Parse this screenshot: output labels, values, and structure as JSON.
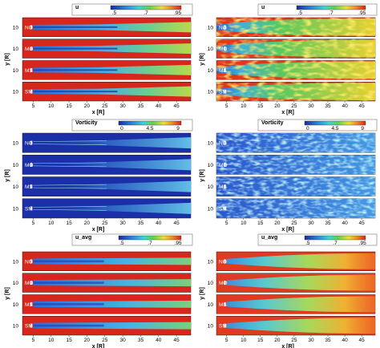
{
  "chart_data": [
    {
      "type": "heatmap",
      "colorbar": {
        "label": "u",
        "ticks": [
          ".5",
          ".7",
          ".95"
        ]
      },
      "strips": [
        "NO",
        "MO",
        "MS",
        "SM"
      ],
      "strip_y_tick": "10",
      "ylabel": "y [R]",
      "xlabel": "x [R]",
      "xticks": [
        "5",
        "10",
        "15",
        "20",
        "25",
        "30",
        "35",
        "40",
        "45"
      ],
      "xlim": [
        2,
        49
      ],
      "field": "jet",
      "colors": {
        "background": "#d8261c",
        "core": "#3b8fd9"
      }
    },
    {
      "type": "heatmap",
      "colorbar": {
        "label": "u",
        "ticks": [
          ".5",
          ".7",
          ".95"
        ]
      },
      "strips": [
        "NO",
        "MO",
        "MS",
        "SM"
      ],
      "strip_y_tick": "10",
      "ylabel": "y [R]",
      "xlabel": "x [R]",
      "xticks": [
        "5",
        "10",
        "15",
        "20",
        "25",
        "30",
        "35",
        "40",
        "45"
      ],
      "xlim": [
        2,
        49
      ],
      "field": "turbulent",
      "colors": {
        "background": "#e0381c",
        "core": "#4fc35a"
      }
    },
    {
      "type": "heatmap",
      "colorbar": {
        "label": "Vorticity",
        "ticks": [
          "0",
          "4.5",
          "9"
        ]
      },
      "strips": [
        "NO",
        "MO",
        "MS",
        "SM"
      ],
      "strip_y_tick": "10",
      "ylabel": "y [R]",
      "xlabel": "x [R]",
      "xticks": [
        "5",
        "10",
        "15",
        "20",
        "25",
        "30",
        "35",
        "40",
        "45"
      ],
      "xlim": [
        2,
        49
      ],
      "field": "vorticity-sparse",
      "colors": {
        "background": "#1a2fa8",
        "core": "#7ad8e8"
      }
    },
    {
      "type": "heatmap",
      "colorbar": {
        "label": "Vorticity",
        "ticks": [
          "0",
          "4.5",
          "9"
        ]
      },
      "strips": [
        "NO",
        "MO",
        "MS",
        "SM"
      ],
      "strip_y_tick": "10",
      "ylabel": "y [R]",
      "xlabel": "x [R]",
      "xticks": [
        "5",
        "10",
        "15",
        "20",
        "25",
        "30",
        "35",
        "40",
        "45"
      ],
      "xlim": [
        2,
        49
      ],
      "field": "vorticity-dense",
      "colors": {
        "background": "#2852c4",
        "core": "#6fd0f0"
      }
    },
    {
      "type": "heatmap",
      "colorbar": {
        "label": "u_avg",
        "ticks": [
          ".5",
          ".7",
          ".95"
        ]
      },
      "strips": [
        "NO",
        "MO",
        "MS",
        "SM"
      ],
      "strip_y_tick": "10",
      "ylabel": "y [R]",
      "xlabel": "x [R]",
      "xticks": [
        "5",
        "10",
        "15",
        "20",
        "25",
        "30",
        "35",
        "40",
        "45"
      ],
      "xlim": [
        2,
        49
      ],
      "field": "average-narrow",
      "colors": {
        "background": "#d8261c",
        "core": "#3b8fd9"
      }
    },
    {
      "type": "heatmap",
      "colorbar": {
        "label": "u_avg",
        "ticks": [
          ".5",
          ".7",
          ".95"
        ]
      },
      "strips": [
        "NO",
        "MO",
        "MS",
        "SM"
      ],
      "strip_y_tick": "10",
      "ylabel": "y [R]",
      "xlabel": "x [R]",
      "xticks": [
        "5",
        "10",
        "15",
        "20",
        "25",
        "30",
        "35",
        "40",
        "45"
      ],
      "xlim": [
        2,
        49
      ],
      "field": "average-spread",
      "colors": {
        "background": "#e03a20",
        "core": "#5fc0e8"
      }
    }
  ]
}
